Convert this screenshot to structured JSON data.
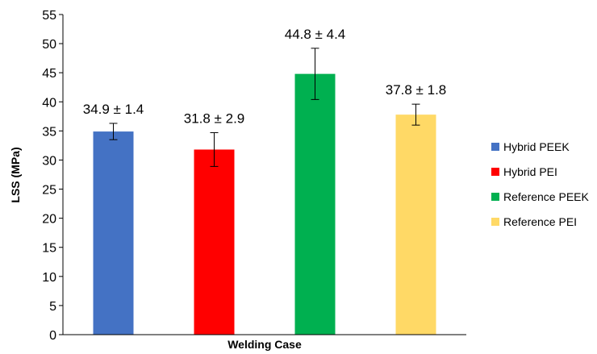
{
  "chart_data": {
    "type": "bar",
    "title": "",
    "xlabel": "Welding Case",
    "ylabel": "LSS (MPa)",
    "ylim": [
      0,
      55
    ],
    "yticks": [
      0,
      5,
      10,
      15,
      20,
      25,
      30,
      35,
      40,
      45,
      50,
      55
    ],
    "grid": false,
    "legend_position": "right",
    "series": [
      {
        "name": "Hybrid PEEK",
        "value": 34.9,
        "error": 1.4,
        "label": "34.9 ± 1.4",
        "color": "#4472C4"
      },
      {
        "name": "Hybrid PEI",
        "value": 31.8,
        "error": 2.9,
        "label": "31.8 ± 2.9",
        "color": "#FF0000"
      },
      {
        "name": "Reference PEEK",
        "value": 44.8,
        "error": 4.4,
        "label": "44.8 ± 4.4",
        "color": "#00B050"
      },
      {
        "name": "Reference PEI",
        "value": 37.8,
        "error": 1.8,
        "label": "37.8 ± 1.8",
        "color": "#FFD966"
      }
    ]
  }
}
